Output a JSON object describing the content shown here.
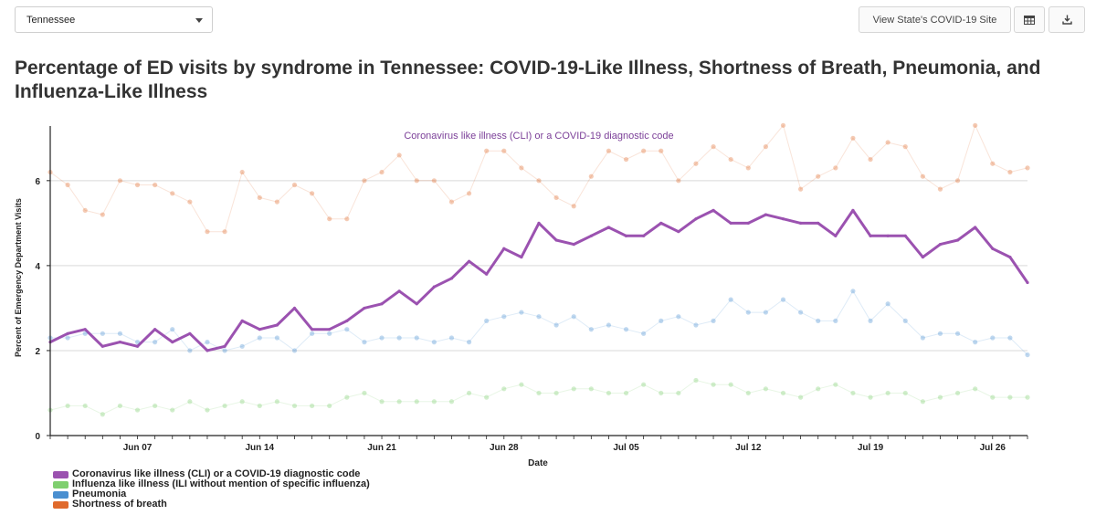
{
  "controls": {
    "state_selected": "Tennessee",
    "site_button_label": "View State's COVID-19 Site",
    "table_icon": "table-icon",
    "download_icon": "download-icon"
  },
  "page_title": "Percentage of ED visits by syndrome in Tennessee: COVID-19-Like Illness, Shortness of Breath, Pneumonia, and Influenza-Like Illness",
  "chart_data": {
    "type": "line",
    "title": "Coronavirus like illness (CLI) or a COVID-19 diagnostic code",
    "xlabel": "Date",
    "ylabel": "Percent of Emergency Department Visits",
    "ylim": [
      0,
      7.2
    ],
    "yticks": [
      0,
      2,
      4,
      6
    ],
    "grid": true,
    "legend_position": "bottom-left",
    "x_start": "Jun 02",
    "x_end": "Jul 30",
    "xtick_labels": [
      "Jun 07",
      "Jun 14",
      "Jun 21",
      "Jun 28",
      "Jul 05",
      "Jul 12",
      "Jul 19",
      "Jul 26"
    ],
    "xtick_day_index": [
      5,
      12,
      19,
      26,
      33,
      40,
      47,
      54
    ],
    "series": [
      {
        "name": "Coronavirus like illness (CLI) or a COVID-19 diagnostic code",
        "color": "#9b52b0",
        "emphasis": true,
        "values": [
          2.2,
          2.4,
          2.5,
          2.1,
          2.2,
          2.1,
          2.5,
          2.2,
          2.4,
          2.0,
          2.1,
          2.7,
          2.5,
          2.6,
          3.0,
          2.5,
          2.5,
          2.7,
          3.0,
          3.1,
          3.4,
          3.1,
          3.5,
          3.7,
          4.1,
          3.8,
          4.4,
          4.2,
          5.0,
          4.6,
          4.5,
          4.7,
          4.9,
          4.7,
          4.7,
          5.0,
          4.8,
          5.1,
          5.3,
          5.0,
          5.0,
          5.2,
          5.1,
          5.0,
          5.0,
          4.7,
          5.3,
          4.7,
          4.7,
          4.7,
          4.2,
          4.5,
          4.6,
          4.9,
          4.4,
          4.2,
          3.6
        ]
      },
      {
        "name": "Influenza like illness (ILI without mention of specific influenza)",
        "color": "#7fcf6f",
        "emphasis": false,
        "values": [
          0.6,
          0.7,
          0.7,
          0.5,
          0.7,
          0.6,
          0.7,
          0.6,
          0.8,
          0.6,
          0.7,
          0.8,
          0.7,
          0.8,
          0.7,
          0.7,
          0.7,
          0.9,
          1.0,
          0.8,
          0.8,
          0.8,
          0.8,
          0.8,
          1.0,
          0.9,
          1.1,
          1.2,
          1.0,
          1.0,
          1.1,
          1.1,
          1.0,
          1.0,
          1.2,
          1.0,
          1.0,
          1.3,
          1.2,
          1.2,
          1.0,
          1.1,
          1.0,
          0.9,
          1.1,
          1.2,
          1.0,
          0.9,
          1.0,
          1.0,
          0.8,
          0.9,
          1.0,
          1.1,
          0.9,
          0.9,
          0.9
        ]
      },
      {
        "name": "Pneumonia",
        "color": "#4a8fd0",
        "emphasis": false,
        "values": [
          2.3,
          2.3,
          2.4,
          2.4,
          2.4,
          2.2,
          2.2,
          2.5,
          2.0,
          2.2,
          2.0,
          2.1,
          2.3,
          2.3,
          2.0,
          2.4,
          2.4,
          2.5,
          2.2,
          2.3,
          2.3,
          2.3,
          2.2,
          2.3,
          2.2,
          2.7,
          2.8,
          2.9,
          2.8,
          2.6,
          2.8,
          2.5,
          2.6,
          2.5,
          2.4,
          2.7,
          2.8,
          2.6,
          2.7,
          3.2,
          2.9,
          2.9,
          3.2,
          2.9,
          2.7,
          2.7,
          3.4,
          2.7,
          3.1,
          2.7,
          2.3,
          2.4,
          2.4,
          2.2,
          2.3,
          2.3,
          1.9
        ]
      },
      {
        "name": "Shortness of breath",
        "color": "#e06a2c",
        "emphasis": false,
        "values": [
          6.2,
          5.9,
          5.3,
          5.2,
          6.0,
          5.9,
          5.9,
          5.7,
          5.5,
          4.8,
          4.8,
          6.2,
          5.6,
          5.5,
          5.9,
          5.7,
          5.1,
          5.1,
          6.0,
          6.2,
          6.6,
          6.0,
          6.0,
          5.5,
          5.7,
          6.7,
          6.7,
          6.3,
          6.0,
          5.6,
          5.4,
          6.1,
          6.7,
          6.5,
          6.7,
          6.7,
          6.0,
          6.4,
          6.8,
          6.5,
          6.3,
          6.8,
          7.3,
          5.8,
          6.1,
          6.3,
          7.0,
          6.5,
          6.9,
          6.8,
          6.1,
          5.8,
          6.0,
          7.3,
          6.4,
          6.2,
          6.3
        ]
      }
    ]
  }
}
